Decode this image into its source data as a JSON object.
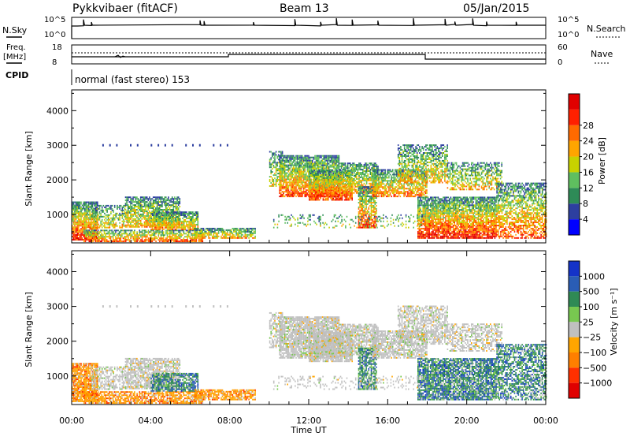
{
  "header": {
    "site": "Pykkvibaer (fitACF)",
    "beam": "Beam 13",
    "date": "05/Jan/2015"
  },
  "status": {
    "nsky_label": "N.Sky",
    "nsky_ticks": [
      "10^5",
      "10^0"
    ],
    "nsearch_label": "N.Search",
    "nsearch_ticks": [
      "10^5",
      "10^0"
    ],
    "freq_label": "Freq.",
    "freq_unit": "[MHz]",
    "freq_ticks": [
      "18",
      "8"
    ],
    "nave_label": "Nave",
    "nave_ticks": [
      "60",
      "0"
    ],
    "cpid_label": "CPID",
    "cpid_value": "normal (fast stereo) 153"
  },
  "colors": {
    "power": [
      "#0000ff",
      "#2d3fa0",
      "#2e8b57",
      "#5fbf5f",
      "#c8d200",
      "#ffa500",
      "#ff6a00",
      "#ff2000",
      "#e00000"
    ],
    "velocity": [
      "#1433c8",
      "#2a5db5",
      "#2f8a55",
      "#78c850",
      "#c0c0c0",
      "#ffa500",
      "#ff7f00",
      "#ff3000",
      "#e00000"
    ]
  },
  "chart_data": [
    {
      "type": "heatmap",
      "ylabel": "Slant Range [km]",
      "yticks": [
        "1000",
        "2000",
        "3000",
        "4000"
      ],
      "ylim": [
        180,
        4600
      ],
      "colorbar_label": "Power [dB]",
      "colorbar_ticks": [
        "4",
        "8",
        "12",
        "16",
        "20",
        "24",
        "28"
      ],
      "zlim": [
        0,
        32
      ]
    },
    {
      "type": "heatmap",
      "ylabel": "Slant Range [km]",
      "yticks": [
        "1000",
        "2000",
        "3000",
        "4000"
      ],
      "ylim": [
        180,
        4600
      ],
      "colorbar_label": "Velocity [m s⁻¹]",
      "colorbar_ticks": [
        "1000",
        "500",
        "100",
        "25",
        "−25",
        "−100",
        "−500",
        "−1000"
      ]
    }
  ],
  "xaxis": {
    "label": "Time UT",
    "ticks": [
      "00:00",
      "04:00",
      "08:00",
      "12:00",
      "16:00",
      "20:00",
      "00:00"
    ]
  }
}
